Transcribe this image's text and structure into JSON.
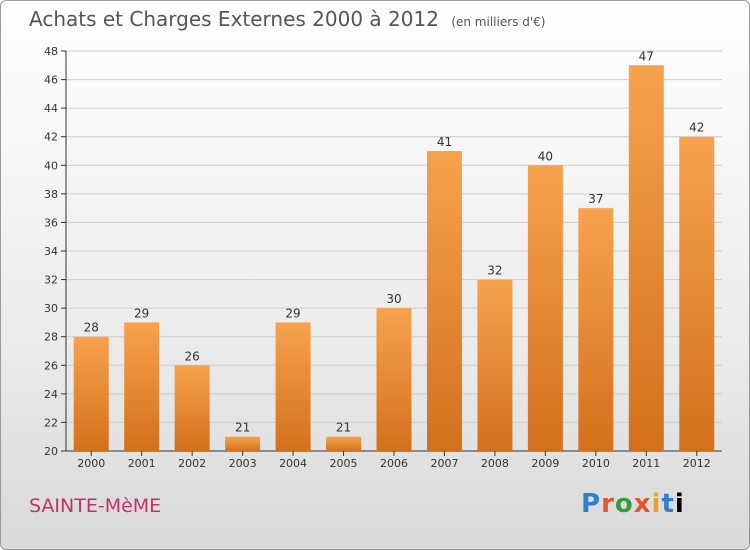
{
  "header": {
    "title": "Achats et Charges Externes 2000 à 2012",
    "unit": "(en milliers d'€)"
  },
  "footer": {
    "place": "SAINTE-MèME",
    "logo": "Proxiti"
  },
  "colors": {
    "bar_light": "#f7a24d",
    "bar_dark": "#d4701c",
    "axis": "#333333",
    "grid": "#cccccc"
  },
  "chart_data": {
    "type": "bar",
    "title": "Achats et Charges Externes 2000 à 2012",
    "subtitle": "(en milliers d'€)",
    "xlabel": "",
    "ylabel": "",
    "categories": [
      "2000",
      "2001",
      "2002",
      "2003",
      "2004",
      "2005",
      "2006",
      "2007",
      "2008",
      "2009",
      "2010",
      "2011",
      "2012"
    ],
    "values": [
      28,
      29,
      26,
      21,
      29,
      21,
      30,
      41,
      32,
      40,
      37,
      47,
      42
    ],
    "ylim": [
      20,
      48
    ],
    "yticks": [
      20,
      22,
      24,
      26,
      28,
      30,
      32,
      34,
      36,
      38,
      40,
      42,
      44,
      46,
      48
    ],
    "grid": true,
    "legend": "none"
  }
}
